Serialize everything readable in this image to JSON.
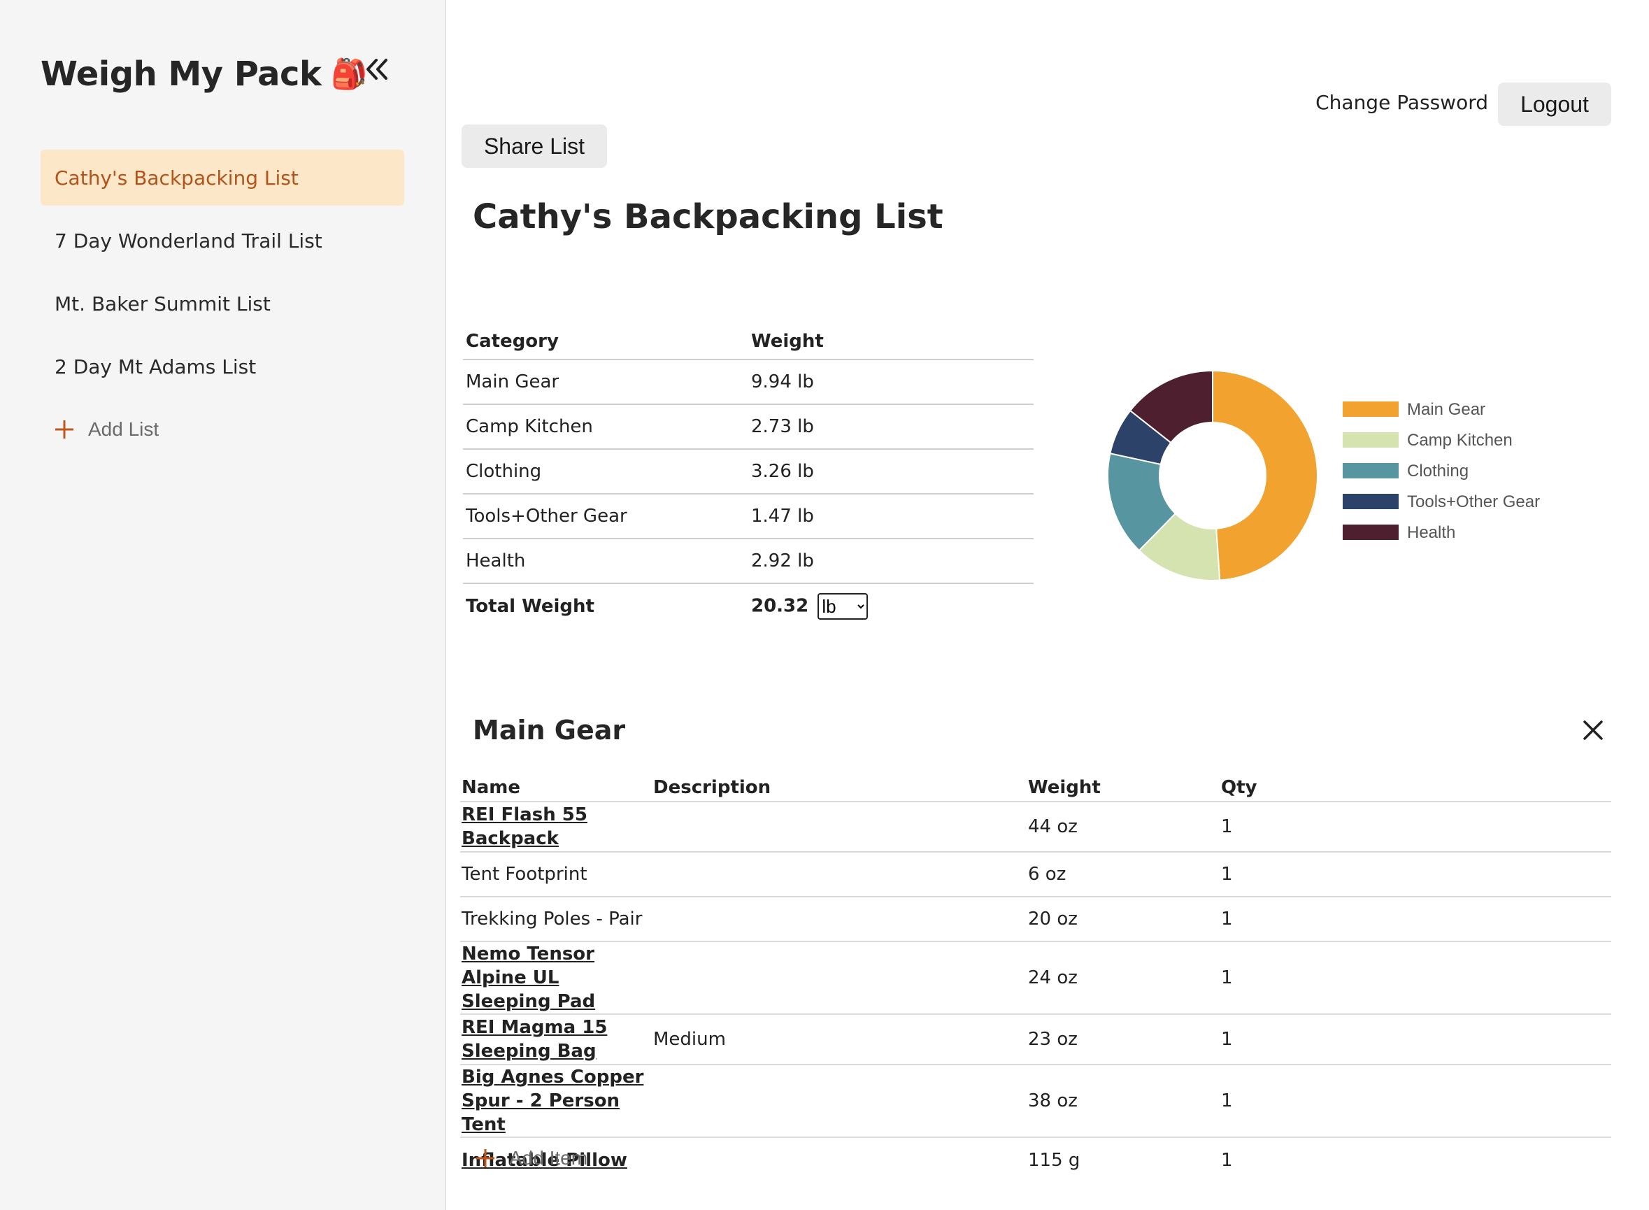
{
  "app": {
    "name": "Weigh My Pack",
    "logo_emoji": "🎒"
  },
  "sidebar": {
    "items": [
      {
        "label": "Cathy's Backpacking List",
        "active": true
      },
      {
        "label": "7 Day Wonderland Trail List",
        "active": false
      },
      {
        "label": "Mt. Baker Summit List",
        "active": false
      },
      {
        "label": "2 Day Mt Adams List",
        "active": false
      }
    ],
    "add_list_label": "Add List"
  },
  "header": {
    "change_password_label": "Change Password",
    "logout_label": "Logout",
    "share_label": "Share List"
  },
  "list": {
    "title": "Cathy's Backpacking List"
  },
  "summary": {
    "headers": {
      "category": "Category",
      "weight": "Weight"
    },
    "rows": [
      {
        "category": "Main Gear",
        "weight": "9.94 lb"
      },
      {
        "category": "Camp Kitchen",
        "weight": "2.73 lb"
      },
      {
        "category": "Clothing",
        "weight": "3.26 lb"
      },
      {
        "category": "Tools+Other Gear",
        "weight": "1.47 lb"
      },
      {
        "category": "Health",
        "weight": "2.92 lb"
      }
    ],
    "total_label": "Total Weight",
    "total_value": "20.32",
    "unit_selected": "lb"
  },
  "chart_data": {
    "type": "pie",
    "variant": "donut",
    "categories": [
      "Main Gear",
      "Camp Kitchen",
      "Clothing",
      "Tools+Other Gear",
      "Health"
    ],
    "values": [
      9.94,
      2.73,
      3.26,
      1.47,
      2.92
    ],
    "colors": [
      "#f2a22f",
      "#d4e3b0",
      "#5795a0",
      "#2d4268",
      "#4e1f2f"
    ],
    "legend": "right"
  },
  "category_section": {
    "title": "Main Gear",
    "headers": {
      "name": "Name",
      "description": "Description",
      "weight": "Weight",
      "qty": "Qty"
    },
    "items": [
      {
        "name": "REI Flash 55 Backpack",
        "link": true,
        "description": "",
        "weight": "44 oz",
        "qty": "1"
      },
      {
        "name": "Tent Footprint",
        "link": false,
        "description": "",
        "weight": "6 oz",
        "qty": "1"
      },
      {
        "name": "Trekking Poles - Pair",
        "link": false,
        "description": "",
        "weight": "20 oz",
        "qty": "1"
      },
      {
        "name": "Nemo Tensor Alpine UL Sleeping Pad",
        "link": true,
        "description": "",
        "weight": "24 oz",
        "qty": "1"
      },
      {
        "name": "REI Magma 15 Sleeping Bag",
        "link": true,
        "description": "Medium",
        "weight": "23 oz",
        "qty": "1"
      },
      {
        "name": "Big Agnes Copper Spur - 2 Person Tent",
        "link": true,
        "description": "",
        "weight": "38 oz",
        "qty": "1"
      },
      {
        "name": "Inflatable Pillow",
        "link": true,
        "description": "",
        "weight": "115 g",
        "qty": "1"
      }
    ],
    "add_item_label": "Add Item"
  }
}
